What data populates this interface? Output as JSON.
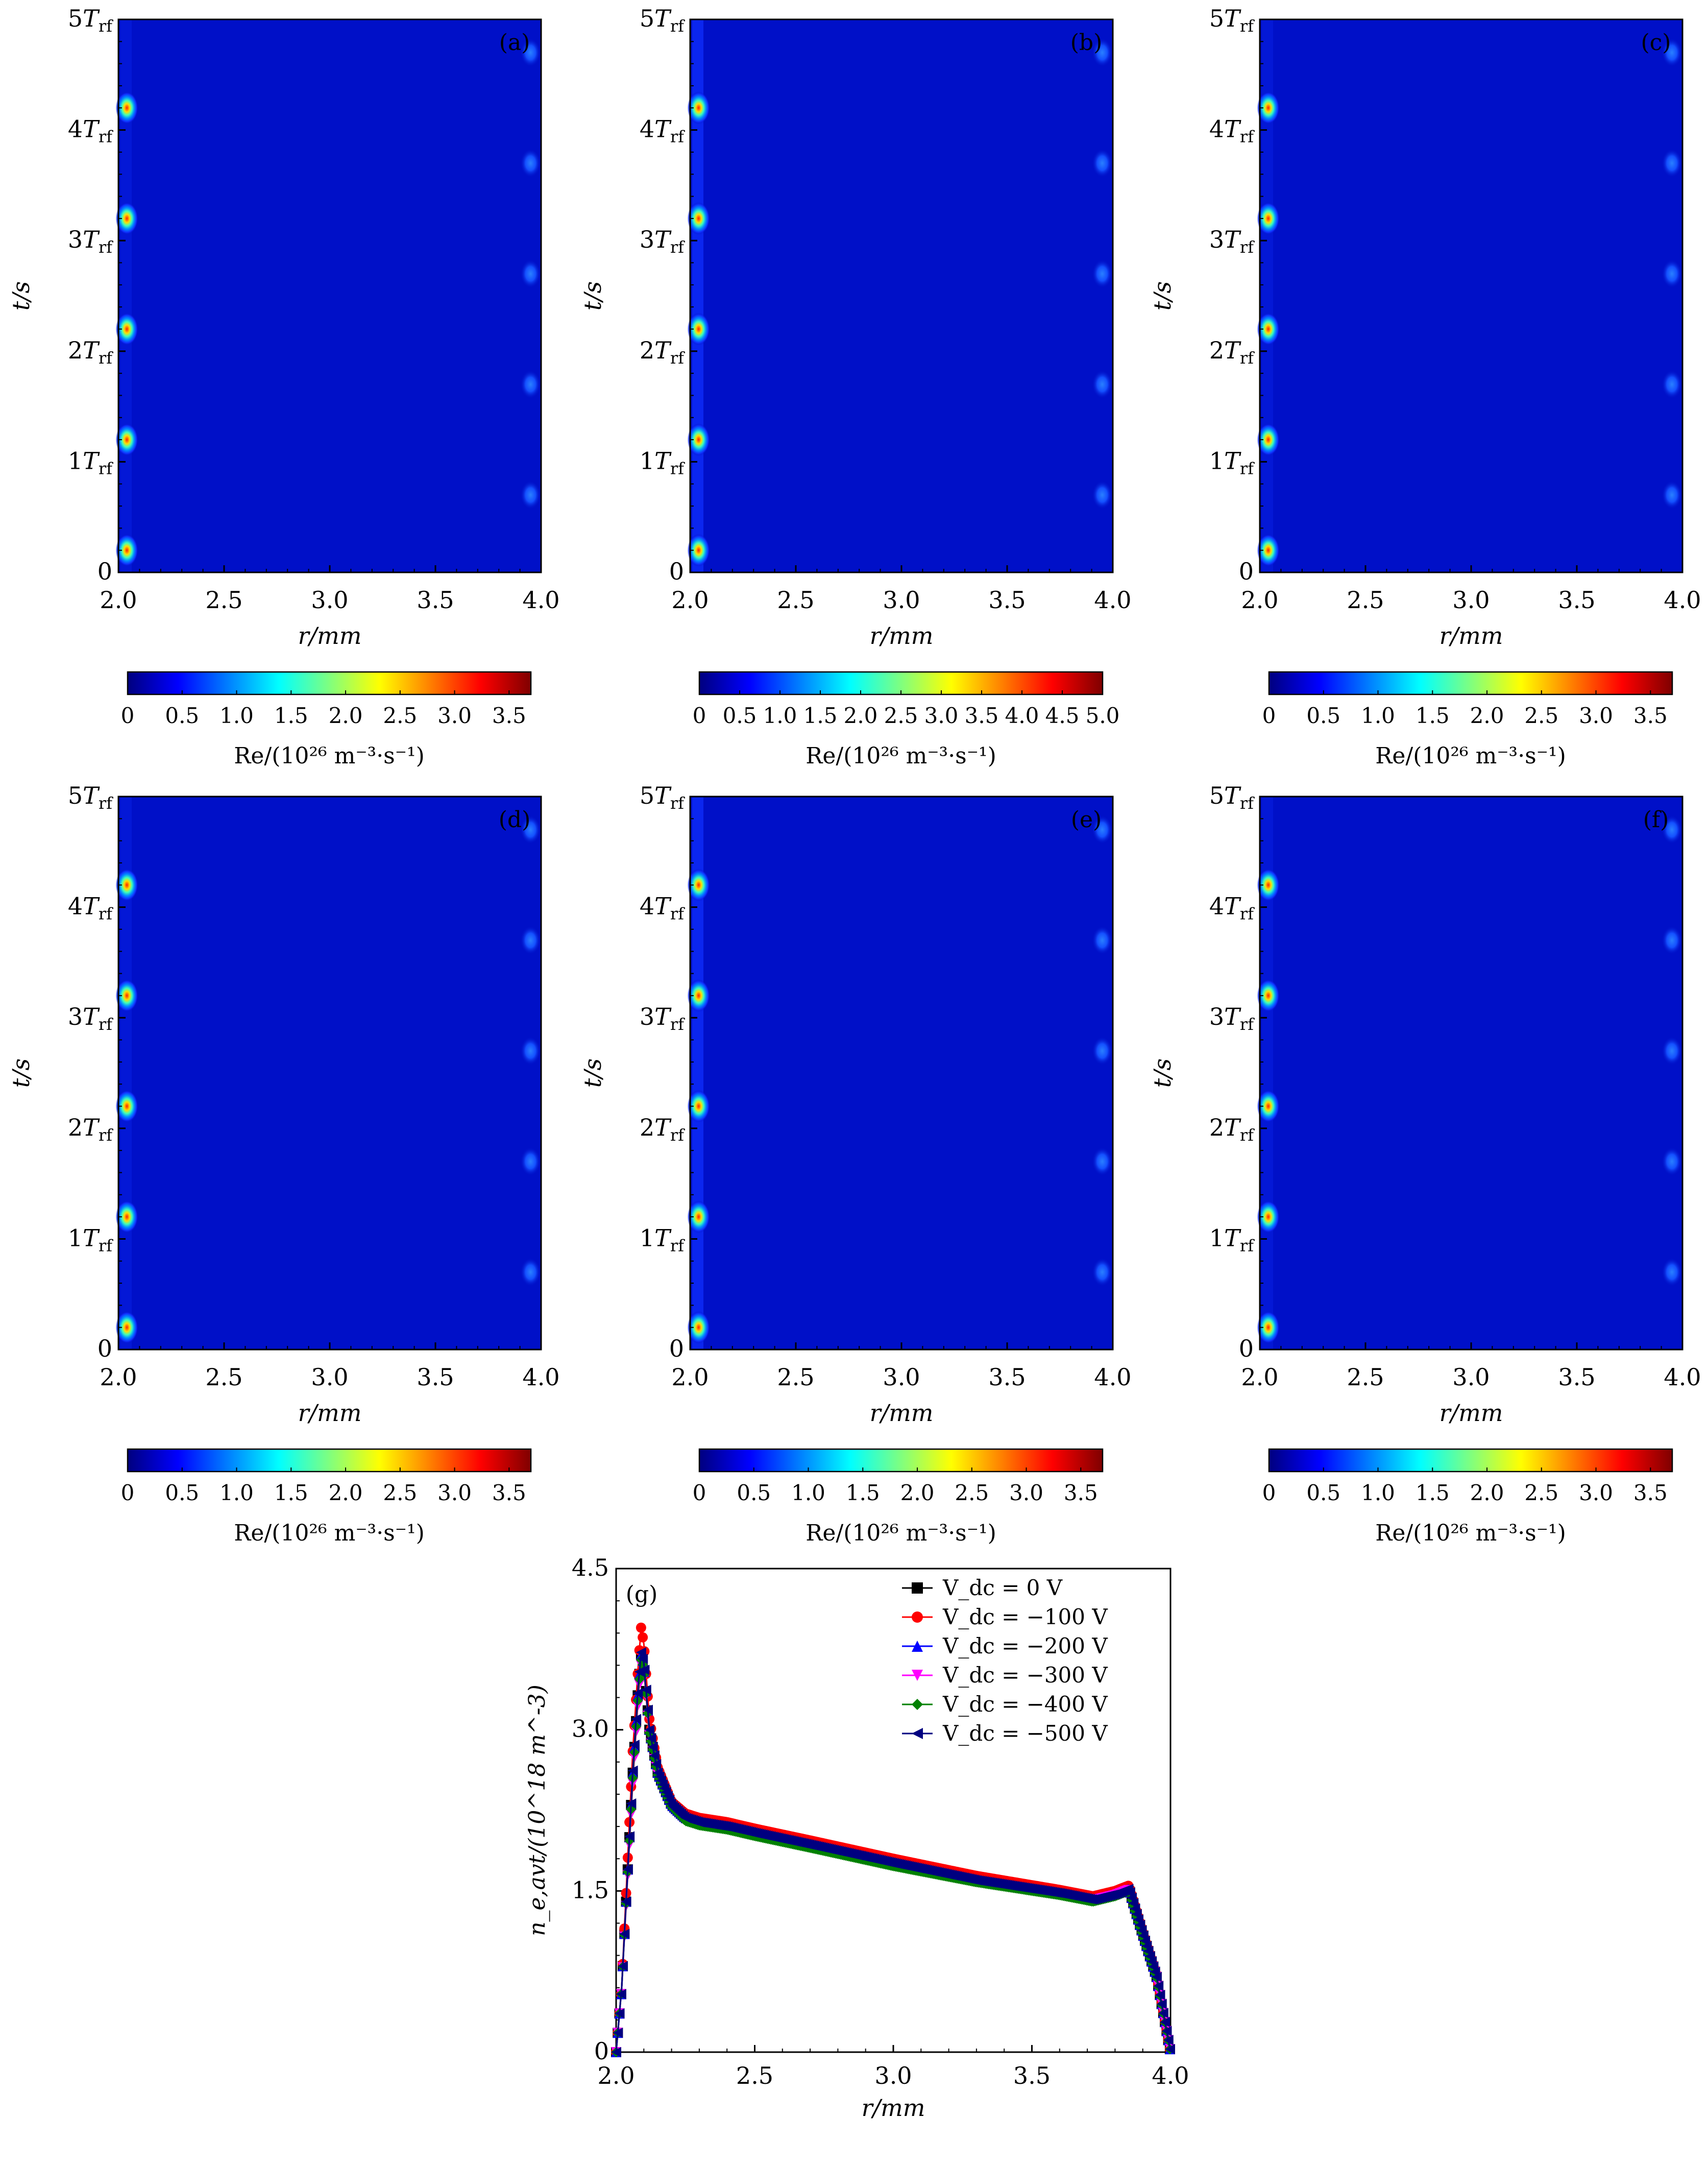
{
  "colormap": [
    "#00007f",
    "#0000ff",
    "#0080ff",
    "#00ffff",
    "#7fff7f",
    "#ffff00",
    "#ff8000",
    "#ff0000",
    "#7f0000"
  ],
  "panels": [
    {
      "label": "(a)",
      "cbar_max": 3.7,
      "cbar_ticks": [
        "0",
        "0.5",
        "1.0",
        "1.5",
        "2.0",
        "2.5",
        "3.0",
        "3.5"
      ]
    },
    {
      "label": "(b)",
      "cbar_max": 5.0,
      "cbar_ticks": [
        "0",
        "0.5",
        "1.0",
        "1.5",
        "2.0",
        "2.5",
        "3.0",
        "3.5",
        "4.0",
        "4.5",
        "5.0"
      ]
    },
    {
      "label": "(c)",
      "cbar_max": 3.7,
      "cbar_ticks": [
        "0",
        "0.5",
        "1.0",
        "1.5",
        "2.0",
        "2.5",
        "3.0",
        "3.5"
      ]
    },
    {
      "label": "(d)",
      "cbar_max": 3.7,
      "cbar_ticks": [
        "0",
        "0.5",
        "1.0",
        "1.5",
        "2.0",
        "2.5",
        "3.0",
        "3.5"
      ]
    },
    {
      "label": "(e)",
      "cbar_max": 3.7,
      "cbar_ticks": [
        "0",
        "0.5",
        "1.0",
        "1.5",
        "2.0",
        "2.5",
        "3.0",
        "3.5"
      ]
    },
    {
      "label": "(f)",
      "cbar_max": 3.7,
      "cbar_ticks": [
        "0",
        "0.5",
        "1.0",
        "1.5",
        "2.0",
        "2.5",
        "3.0",
        "3.5"
      ]
    }
  ],
  "heatmap_axes": {
    "xticks": [
      "2.0",
      "2.5",
      "3.0",
      "3.5",
      "4.0"
    ],
    "yticks": [
      "0",
      "1T",
      "2T",
      "3T",
      "4T",
      "5T"
    ],
    "ytick_sub": "rf",
    "xlabel": "r/mm",
    "ylabel": "t/s",
    "cbar_label": "Re/(10²⁶ m⁻³·s⁻¹)"
  },
  "chart_data": [
    {
      "type": "heatmap",
      "panels": [
        "(a)",
        "(b)",
        "(c)",
        "(d)",
        "(e)",
        "(f)"
      ],
      "x_range": [
        2.0,
        4.0
      ],
      "y_range_periods": [
        0,
        5
      ],
      "inner_hotspots": {
        "r": 2.04,
        "t_periods": [
          0.2,
          1.2,
          2.2,
          3.2,
          4.2
        ],
        "value": 3.5
      },
      "outer_hotspots": {
        "r": 3.95,
        "t_periods": [
          0.7,
          1.7,
          2.7,
          3.7,
          4.7
        ],
        "value": 0.6
      },
      "xlabel": "r/mm",
      "ylabel": "t/s"
    },
    {
      "type": "line",
      "label": "(g)",
      "xlabel": "r/mm",
      "ylabel": "n_e,avt/(10^18 m^-3)",
      "xlim": [
        2.0,
        4.0
      ],
      "ylim": [
        0,
        4.5
      ],
      "xticks": [
        "2.0",
        "2.5",
        "3.0",
        "3.5",
        "4.0"
      ],
      "yticks": [
        "0",
        "1.5",
        "3.0",
        "4.5"
      ],
      "series": [
        {
          "name": "V_dc = 0 V",
          "color": "#000000",
          "marker": "square",
          "peak": 3.7,
          "x": [
            2.0,
            2.02,
            2.04,
            2.06,
            2.08,
            2.09,
            2.1,
            2.12,
            2.15,
            2.2,
            2.25,
            2.3,
            2.4,
            2.5,
            2.7,
            3.0,
            3.3,
            3.6,
            3.72,
            3.8,
            3.85,
            3.9,
            3.95,
            4.0
          ],
          "y": [
            0,
            0.6,
            1.6,
            2.6,
            3.4,
            3.7,
            3.6,
            3.0,
            2.6,
            2.3,
            2.18,
            2.14,
            2.1,
            2.04,
            1.93,
            1.76,
            1.6,
            1.48,
            1.42,
            1.47,
            1.52,
            1.1,
            0.7,
            0
          ]
        },
        {
          "name": "V_dc = −100 V",
          "color": "#ff0000",
          "marker": "circle",
          "peak": 3.95,
          "x": [
            2.0,
            2.02,
            2.04,
            2.06,
            2.08,
            2.09,
            2.1,
            2.12,
            2.15,
            2.2,
            2.25,
            2.3,
            2.4,
            2.5,
            2.7,
            3.0,
            3.3,
            3.6,
            3.72,
            3.8,
            3.85,
            3.9,
            3.95,
            4.0
          ],
          "y": [
            0,
            0.6,
            1.7,
            2.8,
            3.6,
            3.95,
            3.8,
            3.1,
            2.65,
            2.33,
            2.22,
            2.18,
            2.14,
            2.08,
            1.97,
            1.8,
            1.64,
            1.51,
            1.45,
            1.5,
            1.55,
            1.12,
            0.72,
            0
          ]
        },
        {
          "name": "V_dc = −200 V",
          "color": "#0000ff",
          "marker": "triangle-up",
          "peak": 3.7,
          "x": [
            2.0,
            2.02,
            2.04,
            2.06,
            2.08,
            2.09,
            2.1,
            2.12,
            2.15,
            2.2,
            2.25,
            2.3,
            2.4,
            2.5,
            2.7,
            3.0,
            3.3,
            3.6,
            3.72,
            3.8,
            3.85,
            3.9,
            3.95,
            4.0
          ],
          "y": [
            0,
            0.6,
            1.6,
            2.6,
            3.4,
            3.7,
            3.6,
            3.0,
            2.6,
            2.3,
            2.18,
            2.14,
            2.1,
            2.04,
            1.93,
            1.76,
            1.6,
            1.48,
            1.42,
            1.47,
            1.52,
            1.1,
            0.7,
            0
          ]
        },
        {
          "name": "V_dc = −300 V",
          "color": "#ff00ff",
          "marker": "triangle-down",
          "peak": 3.6,
          "x": [
            2.0,
            2.02,
            2.04,
            2.06,
            2.08,
            2.09,
            2.1,
            2.12,
            2.15,
            2.2,
            2.25,
            2.3,
            2.4,
            2.5,
            2.7,
            3.0,
            3.3,
            3.6,
            3.72,
            3.8,
            3.85,
            3.9,
            3.95,
            4.0
          ],
          "y": [
            0,
            0.6,
            1.55,
            2.5,
            3.3,
            3.6,
            3.55,
            2.95,
            2.58,
            2.29,
            2.17,
            2.13,
            2.09,
            2.03,
            1.92,
            1.75,
            1.59,
            1.47,
            1.41,
            1.46,
            1.51,
            1.09,
            0.7,
            0
          ]
        },
        {
          "name": "V_dc = −400 V",
          "color": "#008000",
          "marker": "diamond",
          "peak": 3.65,
          "x": [
            2.0,
            2.02,
            2.04,
            2.06,
            2.08,
            2.09,
            2.1,
            2.12,
            2.15,
            2.2,
            2.25,
            2.3,
            2.4,
            2.5,
            2.7,
            3.0,
            3.3,
            3.6,
            3.72,
            3.8,
            3.85,
            3.9,
            3.95,
            4.0
          ],
          "y": [
            0,
            0.6,
            1.58,
            2.55,
            3.35,
            3.65,
            3.58,
            2.97,
            2.58,
            2.28,
            2.15,
            2.11,
            2.07,
            2.01,
            1.9,
            1.73,
            1.58,
            1.46,
            1.4,
            1.45,
            1.5,
            1.08,
            0.69,
            0
          ]
        },
        {
          "name": "V_dc = −500 V",
          "color": "#000080",
          "marker": "triangle-left",
          "peak": 3.72,
          "x": [
            2.0,
            2.02,
            2.04,
            2.06,
            2.08,
            2.09,
            2.1,
            2.12,
            2.15,
            2.2,
            2.25,
            2.3,
            2.4,
            2.5,
            2.7,
            3.0,
            3.3,
            3.6,
            3.72,
            3.8,
            3.85,
            3.9,
            3.95,
            4.0
          ],
          "y": [
            0,
            0.6,
            1.6,
            2.62,
            3.42,
            3.72,
            3.62,
            3.0,
            2.6,
            2.3,
            2.18,
            2.14,
            2.1,
            2.04,
            1.93,
            1.76,
            1.6,
            1.48,
            1.42,
            1.47,
            1.52,
            1.1,
            0.7,
            0
          ]
        }
      ]
    }
  ]
}
